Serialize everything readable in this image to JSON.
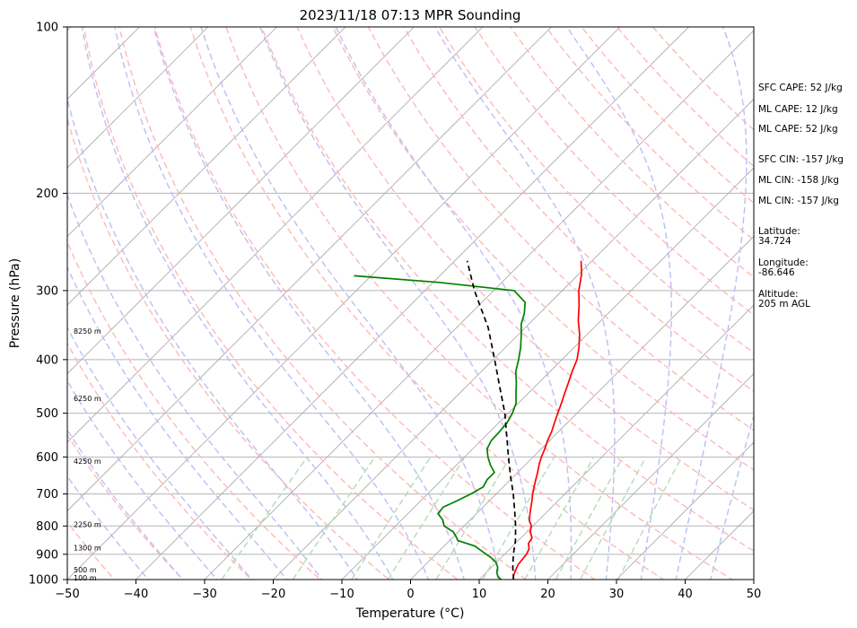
{
  "chart_data": {
    "type": "skew-t",
    "title": "2023/11/18 07:13 MPR Sounding",
    "xlabel": "Temperature (°C)",
    "ylabel": "Pressure (hPa)",
    "xlim": [
      -50,
      50
    ],
    "ylim": [
      1000,
      100
    ],
    "y_scale": "log",
    "x_ticks": [
      -50,
      -40,
      -30,
      -20,
      -10,
      0,
      10,
      20,
      30,
      40,
      50
    ],
    "y_ticks": [
      1000,
      900,
      800,
      700,
      600,
      500,
      400,
      300,
      200,
      100
    ],
    "grid": true,
    "series": [
      {
        "color": "#ff0000",
        "points": [
          [
            1000,
            15.0
          ],
          [
            990,
            14.6
          ],
          [
            970,
            14.1
          ],
          [
            940,
            13.5
          ],
          [
            900,
            13.2
          ],
          [
            880,
            12.8
          ],
          [
            860,
            11.9
          ],
          [
            840,
            11.6
          ],
          [
            820,
            10.5
          ],
          [
            800,
            9.8
          ],
          [
            780,
            8.6
          ],
          [
            760,
            7.8
          ],
          [
            740,
            7.0
          ],
          [
            720,
            6.2
          ],
          [
            700,
            5.3
          ],
          [
            680,
            4.5
          ],
          [
            660,
            3.7
          ],
          [
            640,
            2.9
          ],
          [
            620,
            2.0
          ],
          [
            600,
            1.2
          ],
          [
            580,
            0.5
          ],
          [
            560,
            -0.3
          ],
          [
            540,
            -1.0
          ],
          [
            520,
            -1.9
          ],
          [
            500,
            -2.8
          ],
          [
            480,
            -3.7
          ],
          [
            460,
            -4.7
          ],
          [
            440,
            -5.7
          ],
          [
            420,
            -6.8
          ],
          [
            400,
            -7.8
          ],
          [
            380,
            -9.3
          ],
          [
            360,
            -11.1
          ],
          [
            340,
            -13.3
          ],
          [
            320,
            -15.3
          ],
          [
            300,
            -17.6
          ],
          [
            280,
            -19.6
          ],
          [
            265,
            -21.6
          ]
        ]
      },
      {
        "color": "#008000",
        "points": [
          [
            1000,
            13.2
          ],
          [
            990,
            12.4
          ],
          [
            970,
            11.5
          ],
          [
            950,
            10.9
          ],
          [
            930,
            9.9
          ],
          [
            910,
            8.3
          ],
          [
            890,
            6.4
          ],
          [
            870,
            4.5
          ],
          [
            850,
            1.2
          ],
          [
            835,
            0.3
          ],
          [
            820,
            -0.7
          ],
          [
            800,
            -2.9
          ],
          [
            780,
            -4.0
          ],
          [
            760,
            -5.6
          ],
          [
            740,
            -5.8
          ],
          [
            720,
            -4.7
          ],
          [
            700,
            -3.7
          ],
          [
            680,
            -2.9
          ],
          [
            660,
            -3.4
          ],
          [
            640,
            -3.4
          ],
          [
            620,
            -5.1
          ],
          [
            600,
            -6.6
          ],
          [
            580,
            -7.9
          ],
          [
            560,
            -8.5
          ],
          [
            540,
            -8.6
          ],
          [
            520,
            -8.8
          ],
          [
            500,
            -9.4
          ],
          [
            480,
            -10.3
          ],
          [
            460,
            -11.8
          ],
          [
            440,
            -13.3
          ],
          [
            420,
            -15.0
          ],
          [
            400,
            -16.3
          ],
          [
            380,
            -17.8
          ],
          [
            360,
            -19.6
          ],
          [
            345,
            -21.1
          ],
          [
            330,
            -22.2
          ],
          [
            315,
            -23.7
          ],
          [
            300,
            -27.0
          ],
          [
            290,
            -39.1
          ],
          [
            282,
            -52.5
          ]
        ]
      },
      {
        "color": "#000000",
        "dashed": true,
        "points": [
          [
            1000,
            15.0
          ],
          [
            950,
            13.1
          ],
          [
            900,
            11.3
          ],
          [
            850,
            9.6
          ],
          [
            800,
            7.5
          ],
          [
            750,
            5.1
          ],
          [
            700,
            2.5
          ],
          [
            650,
            -0.5
          ],
          [
            600,
            -3.6
          ],
          [
            550,
            -6.9
          ],
          [
            500,
            -10.5
          ],
          [
            450,
            -14.9
          ],
          [
            400,
            -19.8
          ],
          [
            350,
            -25.4
          ],
          [
            300,
            -32.8
          ],
          [
            265,
            -38.2
          ]
        ]
      }
    ],
    "height_labels": [
      {
        "p": 355,
        "text": "8250 m"
      },
      {
        "p": 470,
        "text": "6250 m"
      },
      {
        "p": 610,
        "text": "4250 m"
      },
      {
        "p": 795,
        "text": "2250 m"
      },
      {
        "p": 875,
        "text": "1300 m"
      },
      {
        "p": 960,
        "text": "500 m"
      },
      {
        "p": 993,
        "text": "100 m"
      }
    ],
    "isotherms": [
      -150,
      -140,
      -130,
      -120,
      -110,
      -100,
      -90,
      -80,
      -70,
      -60,
      -50,
      -40,
      -30,
      -20,
      -10,
      0,
      10,
      20,
      30,
      40,
      50
    ],
    "dry_adiabats_theta_K": [
      210,
      220,
      230,
      240,
      250,
      260,
      270,
      280,
      290,
      300,
      310,
      320,
      330,
      340,
      350,
      360,
      370,
      380,
      390,
      400,
      410,
      420,
      430,
      440
    ],
    "moist_adiabats_T0_C": [
      -35,
      -30,
      -25,
      -20,
      -15,
      -10,
      -5,
      0,
      5,
      10,
      15,
      20,
      25,
      30,
      35,
      40,
      45
    ],
    "mixing_ratios_gkg": [
      0.4,
      1,
      2,
      3,
      5,
      8,
      12,
      16,
      20,
      28
    ],
    "colors": {
      "temperature": "#ff0000",
      "dewpoint": "#008000",
      "parcel": "#000000",
      "isotherm": "#a8a8a8",
      "dry_adiabat": "#ffb8b8",
      "moist_adiabat": "#bdbdf5",
      "mixing_ratio": "#b3dcb3",
      "grid": "#b5b5b5"
    }
  },
  "annotations": {
    "sfc_cape": "SFC CAPE: 52 J/kg",
    "ml_cape_1": "ML CAPE: 12 J/kg",
    "ml_cape_2": "ML CAPE: 52 J/kg",
    "sfc_cin": "SFC CIN: -157 J/kg",
    "ml_cin_1": "ML CIN: -158 J/kg",
    "ml_cin_2": "ML CIN: -157 J/kg",
    "latitude": "Latitude:\n34.724",
    "longitude": "Longitude:\n-86.646",
    "altitude": "Altitude:\n205 m AGL"
  }
}
